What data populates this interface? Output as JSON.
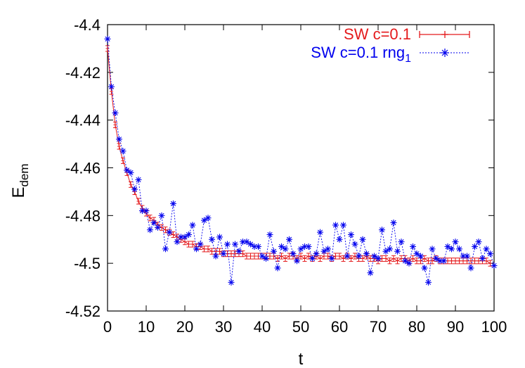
{
  "chart_data": {
    "type": "line",
    "title": "",
    "xlabel": "t",
    "ylabel": "E",
    "ylabel_subscript": "dem",
    "xlim": [
      0,
      100
    ],
    "ylim": [
      -4.52,
      -4.4
    ],
    "x_ticks": [
      0,
      10,
      20,
      30,
      40,
      50,
      60,
      70,
      80,
      90,
      100
    ],
    "x_tick_labels": [
      "0",
      "10",
      "20",
      "30",
      "40",
      "50",
      "60",
      "70",
      "80",
      "90",
      "100"
    ],
    "y_ticks": [
      -4.52,
      -4.5,
      -4.48,
      -4.46,
      -4.44,
      -4.42,
      -4.4
    ],
    "y_tick_labels": [
      "-4.52",
      "-4.5",
      "-4.48",
      "-4.46",
      "-4.44",
      "-4.42",
      "-4.4"
    ],
    "grid": false,
    "legend_position": "top-right",
    "series": [
      {
        "name": "SW c=0.1",
        "color": "#e41a1c",
        "style": "solid line with errorbars and plus markers",
        "error": 0.0012,
        "values": [
          -4.41,
          -4.428,
          -4.442,
          -4.451,
          -4.457,
          -4.462,
          -4.467,
          -4.47,
          -4.474,
          -4.477,
          -4.479,
          -4.481,
          -4.482,
          -4.484,
          -4.485,
          -4.486,
          -4.487,
          -4.488,
          -4.489,
          -4.49,
          -4.491,
          -4.492,
          -4.492,
          -4.493,
          -4.493,
          -4.494,
          -4.494,
          -4.495,
          -4.495,
          -4.495,
          -4.496,
          -4.496,
          -4.496,
          -4.496,
          -4.496,
          -4.496,
          -4.497,
          -4.497,
          -4.497,
          -4.497,
          -4.497,
          -4.497,
          -4.497,
          -4.497,
          -4.498,
          -4.497,
          -4.498,
          -4.497,
          -4.497,
          -4.498,
          -4.497,
          -4.498,
          -4.497,
          -4.498,
          -4.497,
          -4.498,
          -4.497,
          -4.497,
          -4.498,
          -4.497,
          -4.497,
          -4.498,
          -4.497,
          -4.498,
          -4.497,
          -4.498,
          -4.498,
          -4.497,
          -4.498,
          -4.498,
          -4.499,
          -4.498,
          -4.498,
          -4.499,
          -4.498,
          -4.499,
          -4.498,
          -4.498,
          -4.499,
          -4.498,
          -4.499,
          -4.499,
          -4.498,
          -4.499,
          -4.499,
          -4.498,
          -4.499,
          -4.499,
          -4.499,
          -4.499,
          -4.499,
          -4.499,
          -4.499,
          -4.499,
          -4.499,
          -4.499,
          -4.499,
          -4.499,
          -4.499,
          -4.5
        ]
      },
      {
        "name": "SW c=0.1 rng",
        "name_subscript": "1",
        "color": "#0000ee",
        "style": "dotted line with star markers",
        "values": [
          -4.406,
          -4.426,
          -4.437,
          -4.448,
          -4.453,
          -4.461,
          -4.462,
          -4.469,
          -4.465,
          -4.478,
          -4.478,
          -4.486,
          -4.483,
          -4.485,
          -4.48,
          -4.494,
          -4.487,
          -4.475,
          -4.491,
          -4.489,
          -4.489,
          -4.488,
          -4.484,
          -4.494,
          -4.492,
          -4.482,
          -4.481,
          -4.49,
          -4.497,
          -4.489,
          -4.496,
          -4.492,
          -4.508,
          -4.492,
          -4.495,
          -4.491,
          -4.491,
          -4.492,
          -4.493,
          -4.493,
          -4.497,
          -4.498,
          -4.488,
          -4.495,
          -4.502,
          -4.493,
          -4.494,
          -4.49,
          -4.496,
          -4.499,
          -4.494,
          -4.493,
          -4.493,
          -4.498,
          -4.496,
          -4.487,
          -4.495,
          -4.494,
          -4.498,
          -4.484,
          -4.49,
          -4.484,
          -4.497,
          -4.488,
          -4.492,
          -4.497,
          -4.49,
          -4.496,
          -4.504,
          -4.497,
          -4.498,
          -4.486,
          -4.495,
          -4.494,
          -4.483,
          -4.495,
          -4.491,
          -4.499,
          -4.5,
          -4.493,
          -4.496,
          -4.497,
          -4.502,
          -4.508,
          -4.494,
          -4.498,
          -4.499,
          -4.499,
          -4.493,
          -4.494,
          -4.491,
          -4.494,
          -4.497,
          -4.497,
          -4.502,
          -4.493,
          -4.491,
          -4.498,
          -4.494,
          -4.496,
          -4.501
        ]
      }
    ]
  }
}
